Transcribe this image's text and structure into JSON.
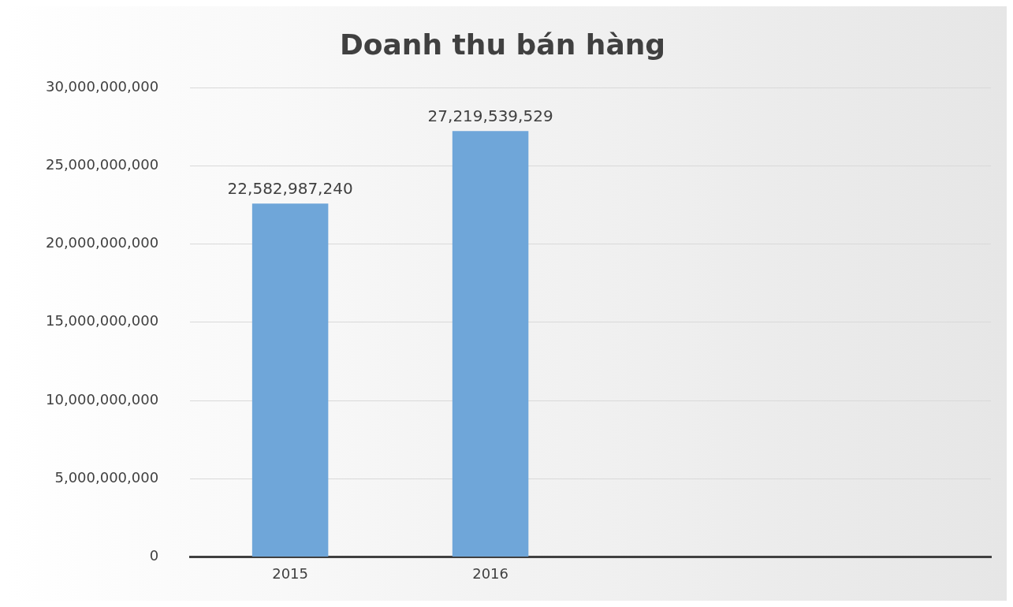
{
  "chart_data": {
    "type": "bar",
    "title": "Doanh thu bán hàng",
    "categories": [
      "2015",
      "2016",
      null,
      null
    ],
    "series": [
      {
        "color": "#6fa6d9",
        "values": [
          22582987240,
          27219539529,
          null,
          null
        ],
        "value_labels": [
          "22,582,987,240",
          "27,219,539,529",
          null,
          null
        ]
      }
    ],
    "ylim": [
      0,
      30000000000
    ],
    "yticks": [
      0,
      {
        "value": 5000000000,
        "label": "5,000,000,000"
      },
      {
        "value": 10000000000,
        "label": "10,000,000,000"
      },
      {
        "value": 15000000000,
        "label": "15,000,000,000"
      },
      {
        "value": 20000000000,
        "label": "20,000,000,000"
      },
      {
        "value": 25000000000,
        "label": "25,000,000,000"
      },
      {
        "value": 30000000000,
        "label": "30,000,000,000"
      }
    ],
    "grid": "y",
    "legend": false
  }
}
